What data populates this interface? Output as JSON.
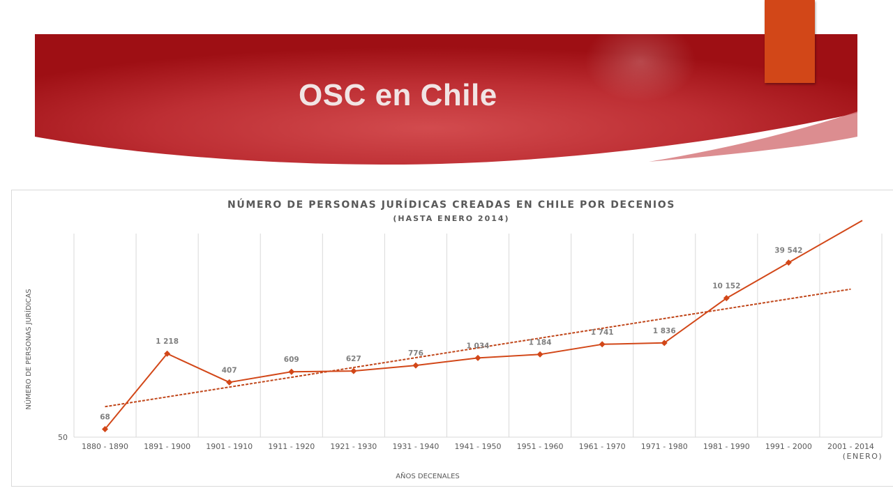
{
  "slide": {
    "title": "OSC en Chile",
    "colors": {
      "banner_dark": "#9e0f14",
      "banner_light": "#d24b4e",
      "accent_tab": "#d24718",
      "title_text": "#f1e4e4"
    }
  },
  "chart_data": {
    "type": "line",
    "title": "NÚMERO DE PERSONAS JURÍDICAS CREADAS EN CHILE POR DECENIOS",
    "subtitle": "(HASTA ENERO 2014)",
    "xlabel": "AÑOS DECENALES",
    "ylabel": "NÚMERO DE PERSONAS JURÍDICAS",
    "y_scale": "log",
    "y_tick_labels": [
      "50"
    ],
    "categories": [
      "1880 - 1890",
      "1891 - 1900",
      "1901 - 1910",
      "1911 - 1920",
      "1921 - 1930",
      "1931 - 1940",
      "1941 - 1950",
      "1951 - 1960",
      "1961 - 1970",
      "1971 - 1980",
      "1981 - 1990",
      "1991 - 2000",
      "2001 - 2014\n(ENERO)"
    ],
    "series": [
      {
        "values": [
          68,
          1218,
          407,
          609,
          627,
          776,
          1034,
          1184,
          1741,
          1836,
          10152,
          39542,
          null
        ],
        "data_labels": [
          "68",
          "1 218",
          "407",
          "609",
          "627",
          "776",
          "1 034",
          "1 184",
          "1 741",
          "1 836",
          "10 152",
          "39 542",
          ""
        ],
        "color": "#d24718",
        "marker": "diamond",
        "line_style": "solid"
      },
      {
        "kind": "exponential-trendline",
        "color": "#c0461a",
        "line_style": "dashed"
      }
    ],
    "grid": "vertical",
    "legend": "none"
  }
}
